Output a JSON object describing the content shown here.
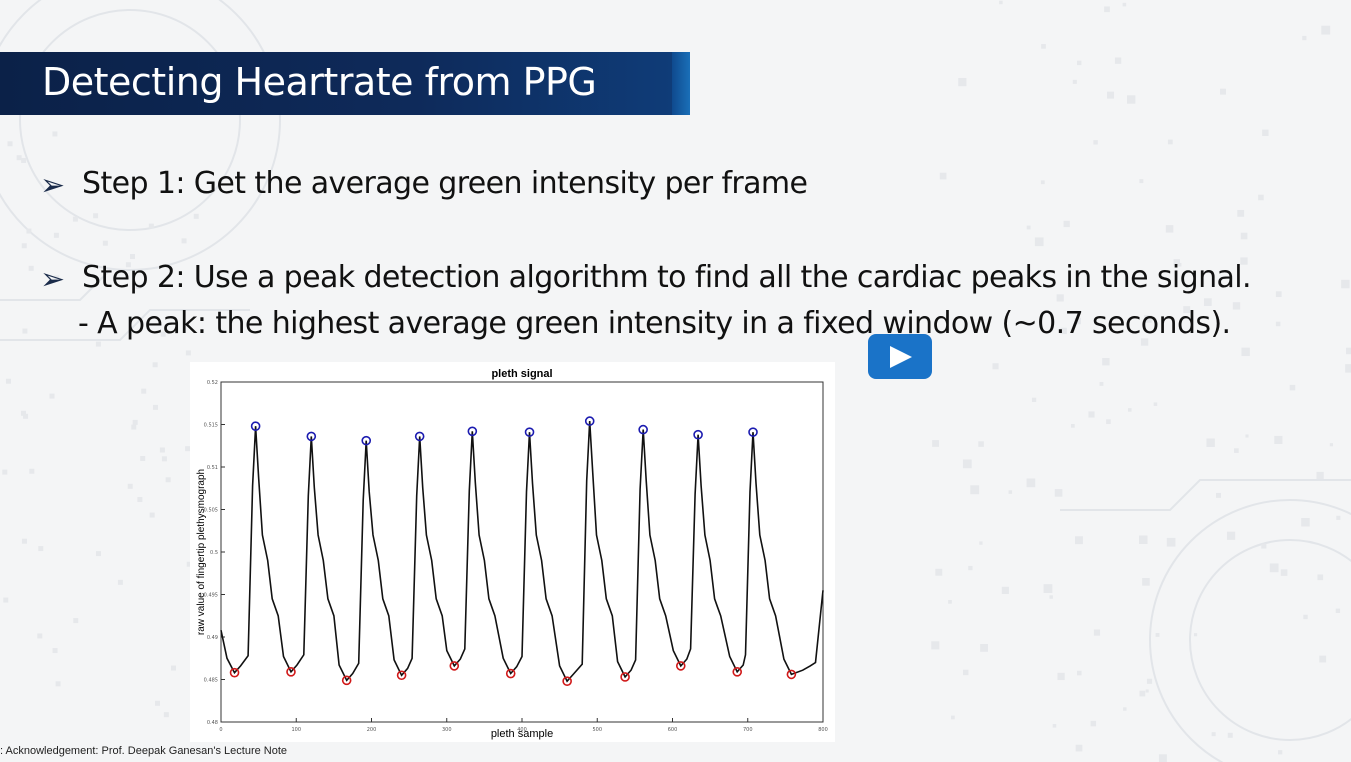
{
  "slide": {
    "title": "Detecting Heartrate from PPG",
    "step1": "Step 1: Get the average green intensity per frame",
    "step2": "Step 2: Use a peak detection algorithm to find all the cardiac peaks in the signal.",
    "step2_sub": "- A peak: the highest average green intensity in a fixed window  (~0.7  seconds).",
    "bullet_glyph": "➢",
    "acknowledgement": ": Acknowledgement: Prof. Deepak Ganesan's Lecture Note"
  },
  "player": {
    "icon": "play-icon",
    "color": "#1a73c8"
  },
  "colors": {
    "title_bg": "#0e2a5a",
    "peak_marker": "#1b1bb0",
    "trough_marker": "#d01818",
    "signal": "#111111"
  },
  "chart_data": {
    "type": "line",
    "title": "pleth signal",
    "xlabel": "pleth sample",
    "ylabel": "raw value of fingertip plethysmograph",
    "xlim": [
      0,
      800
    ],
    "ylim": [
      0.48,
      0.52
    ],
    "xticks": [
      "0",
      "100",
      "200",
      "300",
      "400",
      "500",
      "600",
      "700",
      "800"
    ],
    "yticks": [
      "0.48",
      "0.485",
      "0.49",
      "0.495",
      "0.5",
      "0.505",
      "0.51",
      "0.515",
      "0.52"
    ],
    "peaks": {
      "x": [
        46,
        120,
        193,
        264,
        334,
        410,
        490,
        561,
        634,
        707
      ],
      "y": [
        0.5148,
        0.5136,
        0.5131,
        0.5136,
        0.5142,
        0.5141,
        0.5154,
        0.5144,
        0.5138,
        0.5141
      ]
    },
    "troughs": {
      "x": [
        18,
        93,
        167,
        240,
        310,
        385,
        460,
        537,
        611,
        686,
        758
      ],
      "y": [
        0.4858,
        0.4859,
        0.4849,
        0.4855,
        0.4866,
        0.4857,
        0.4848,
        0.4853,
        0.4866,
        0.4859,
        0.4856
      ]
    }
  }
}
